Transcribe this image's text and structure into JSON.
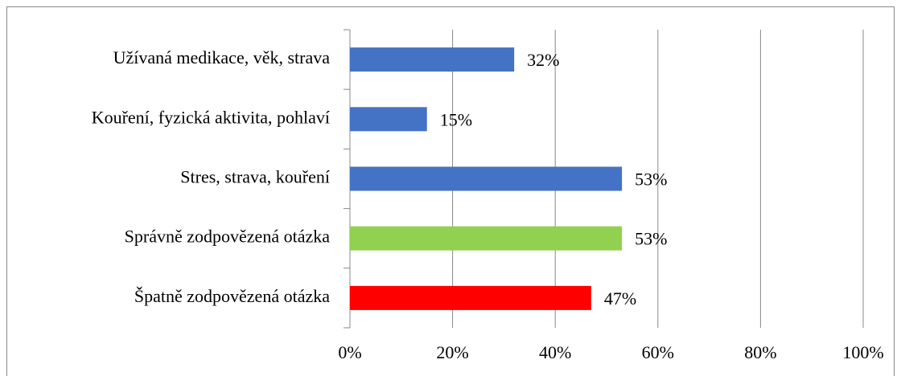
{
  "chart_data": {
    "type": "barh",
    "categories": [
      "Užívaná medikace, věk, strava",
      "Kouření, fyzická aktivita, pohlaví",
      "Stres, strava, kouření",
      "Správně zodpovězená otázka",
      "Špatně zodpovězená otázka"
    ],
    "values": [
      32,
      15,
      53,
      53,
      47
    ],
    "value_labels": [
      "32%",
      "15%",
      "53%",
      "53%",
      "47%"
    ],
    "colors": [
      "#4472c4",
      "#4472c4",
      "#4472c4",
      "#92d050",
      "#ff0000"
    ],
    "xlim": [
      0,
      100
    ],
    "xticks": [
      {
        "value": 0,
        "label": "0%"
      },
      {
        "value": 20,
        "label": "20%"
      },
      {
        "value": 40,
        "label": "40%"
      },
      {
        "value": 60,
        "label": "60%"
      },
      {
        "value": 80,
        "label": "80%"
      },
      {
        "value": 100,
        "label": "100%"
      }
    ],
    "grid": true
  }
}
